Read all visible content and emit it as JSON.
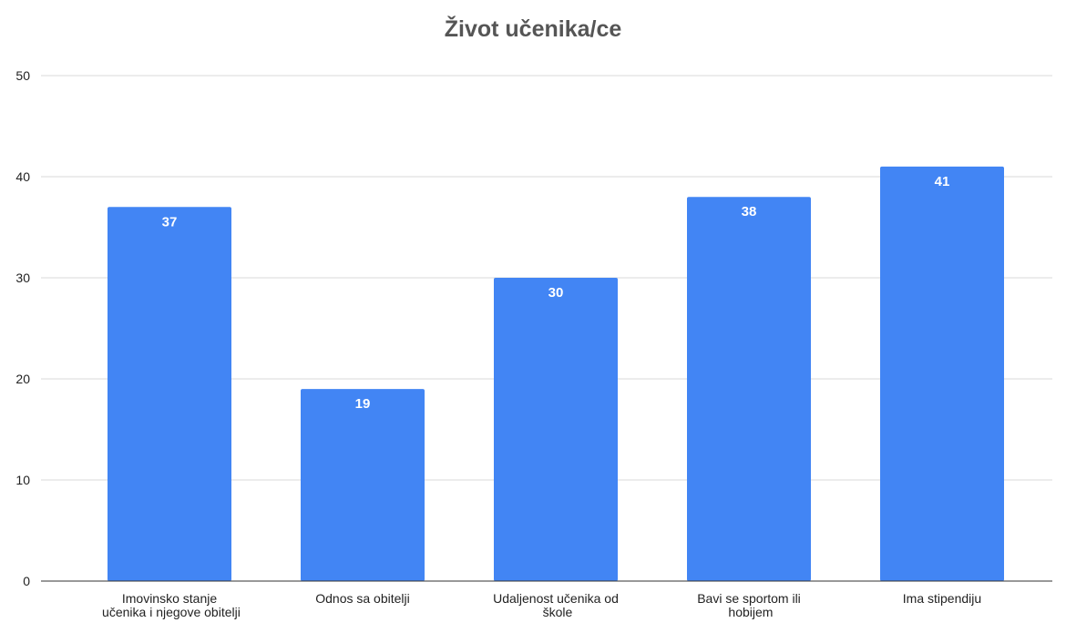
{
  "chart_data": {
    "type": "bar",
    "title": "Život učenika/ce",
    "categories": [
      "Imovinsko stanje učenika i njegove obitelji",
      "Odnos sa obitelji",
      "Udaljenost učenika od škole",
      "Bavi se sportom ili hobijem",
      "Ima stipendiju"
    ],
    "values": [
      37,
      19,
      30,
      38,
      41
    ],
    "color": "#4285f4",
    "ylim": [
      0,
      50
    ],
    "yticks": [
      0,
      10,
      20,
      30,
      40,
      50
    ],
    "grid": true
  }
}
